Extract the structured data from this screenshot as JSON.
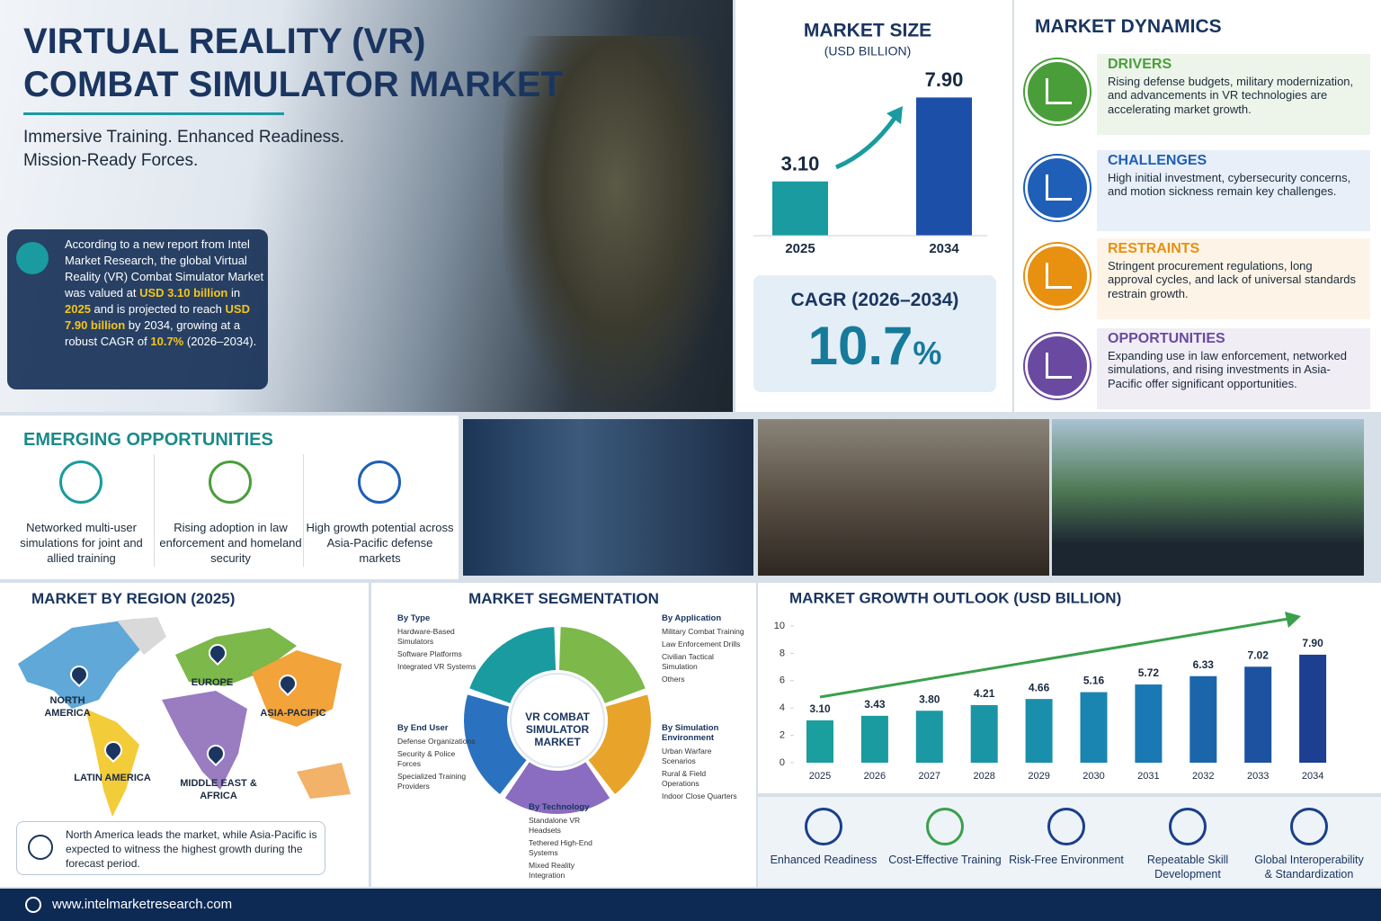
{
  "header": {
    "title_lines": [
      "VIRTUAL REALITY (VR)",
      "COMBAT SIMULATOR MARKET"
    ],
    "tagline_lines": [
      "Immersive Training.  Enhanced Readiness.",
      "Mission-Ready Forces."
    ],
    "summary": [
      {
        "text": "According to a new report from Intel Market Research, the global Virtual Reality (VR) Combat Simulator Market was valued at ",
        "highlight": false
      },
      {
        "text": "USD 3.10 billion",
        "highlight": true
      },
      {
        "text": " in ",
        "highlight": false
      },
      {
        "text": "2025",
        "highlight": true
      },
      {
        "text": " and is projected to reach ",
        "highlight": false
      },
      {
        "text": "USD 7.90 billion",
        "highlight": true
      },
      {
        "text": " by 2034, growing at a robust CAGR of ",
        "highlight": false
      },
      {
        "text": "10.7%",
        "highlight": true
      },
      {
        "text": " (2026–2034).",
        "highlight": false
      }
    ]
  },
  "market_size": {
    "cagr_label": "CAGR (2026–2034)",
    "cagr_value": "10.7",
    "cagr_unit": "%"
  },
  "dynamics": {
    "title": "MARKET DYNAMICS",
    "items": [
      {
        "heading": "DRIVERS",
        "text": "Rising defense budgets, military modernization, and advancements in VR technologies are accelerating market growth.",
        "color": "#4a9e3a"
      },
      {
        "heading": "CHALLENGES",
        "text": "High initial investment, cybersecurity concerns, and motion sickness remain key challenges.",
        "color": "#1f5fb8"
      },
      {
        "heading": "RESTRAINTS",
        "text": "Stringent procurement regulations, long approval cycles, and lack of universal standards restrain growth.",
        "color": "#e8900f"
      },
      {
        "heading": "OPPORTUNITIES",
        "text": "Expanding use in law enforcement, networked simulations, and rising investments in Asia-Pacific offer significant opportunities.",
        "color": "#6a4aa0"
      }
    ]
  },
  "emerging": {
    "title": "EMERGING OPPORTUNITIES",
    "items": [
      "Networked multi-user simulations for joint and allied training",
      "Rising adoption in law enforcement and homeland security",
      "High growth potential across Asia-Pacific defense markets"
    ]
  },
  "region": {
    "title": "MARKET BY REGION (2025)",
    "regions": [
      "NORTH AMERICA",
      "EUROPE",
      "ASIA-PACIFIC",
      "LATIN AMERICA",
      "MIDDLE EAST & AFRICA"
    ],
    "note": "North America leads the market, while Asia-Pacific is expected to witness the highest growth during the forecast period."
  },
  "segmentation": {
    "title": "MARKET SEGMENTATION",
    "center": "VR COMBAT SIMULATOR MARKET",
    "groups": [
      {
        "heading": "By Type",
        "items": [
          "Hardware-Based Simulators",
          "Software Platforms",
          "Integrated VR Systems"
        ]
      },
      {
        "heading": "By End User",
        "items": [
          "Defense Organizations",
          "Security & Police Forces",
          "Specialized Training Providers"
        ]
      },
      {
        "heading": "By Technology",
        "items": [
          "Standalone VR Headsets",
          "Tethered High-End Systems",
          "Mixed Reality Integration"
        ]
      },
      {
        "heading": "By Application",
        "items": [
          "Military Combat Training",
          "Law Enforcement Drills",
          "Civilian Tactical Simulation",
          "Others"
        ]
      },
      {
        "heading": "By Simulation Environment",
        "items": [
          "Urban Warfare Scenarios",
          "Rural & Field Operations",
          "Indoor Close Quarters"
        ]
      }
    ]
  },
  "benefits": [
    "Enhanced Readiness",
    "Cost-Effective Training",
    "Risk-Free Environment",
    "Repeatable Skill Development",
    "Global Interoperability & Standardization"
  ],
  "footer": {
    "url": "www.intelmarketresearch.com"
  },
  "chart_data": [
    {
      "type": "bar",
      "title": "MARKET SIZE",
      "subtitle": "(USD BILLION)",
      "categories": [
        "2025",
        "2034"
      ],
      "values": [
        3.1,
        7.9
      ],
      "value_labels": [
        "3.10",
        "7.90"
      ],
      "colors": [
        "#1a9ba0",
        "#1c4fa8"
      ],
      "ylim": [
        0,
        9
      ]
    },
    {
      "type": "bar",
      "title": "MARKET GROWTH OUTLOOK (USD BILLION)",
      "categories": [
        "2025",
        "2026",
        "2027",
        "2028",
        "2029",
        "2030",
        "2031",
        "2032",
        "2033",
        "2034"
      ],
      "values": [
        3.1,
        3.43,
        3.8,
        4.21,
        4.66,
        5.16,
        5.72,
        6.33,
        7.02,
        7.9
      ],
      "value_labels": [
        "3.10",
        "3.43",
        "3.80",
        "4.21",
        "4.66",
        "5.16",
        "5.72",
        "6.33",
        "7.02",
        "7.90"
      ],
      "colors": [
        "#1b9e9e",
        "#1a9ba0",
        "#1a98a3",
        "#1a95a6",
        "#1a8fab",
        "#1a85b0",
        "#1a78b3",
        "#1b66ab",
        "#1c52a0",
        "#1d3f92"
      ],
      "ylim": [
        0,
        10
      ],
      "yticks": [
        0,
        2,
        4,
        6,
        8,
        10
      ]
    }
  ]
}
